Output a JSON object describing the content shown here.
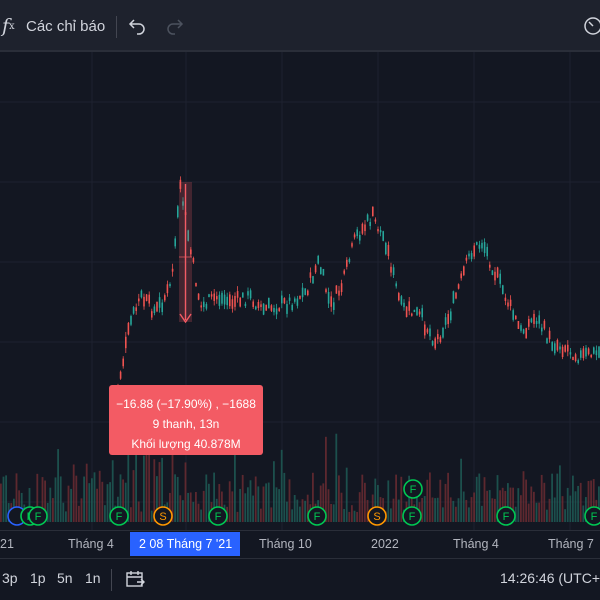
{
  "toolbar": {
    "fx_symbol": "f",
    "fx_sub": "x",
    "indicators_label": "Các chỉ báo",
    "undo_icon": "undo-icon",
    "redo_icon": "redo-icon",
    "snapshot_icon": "camera-icon"
  },
  "measure_tooltip": {
    "line1": "−16.88 (−17.90%) , −1688",
    "line2": "9 thanh, 13n",
    "line3": "Khối lượng 40.878M"
  },
  "x_axis": {
    "ticks": [
      "21",
      "Tháng 4",
      "Tháng 10",
      "2022",
      "Tháng 4",
      "Tháng 7"
    ],
    "cursor_label": "2  08 Tháng 7 '21"
  },
  "bottom_bar": {
    "ranges": [
      "3p",
      "1p",
      "5n",
      "1n"
    ],
    "date_range_icon": "calendar-range-icon",
    "clock": "14:26:46 (UTC+"
  },
  "events": {
    "row1": [
      "F",
      "F",
      "F",
      "S",
      "F",
      "F",
      "S",
      "F",
      "F",
      "F"
    ],
    "row2": [
      "F"
    ]
  },
  "colors": {
    "up": "#26a69a",
    "down": "#ef5350",
    "tooltip": "#f35b64",
    "accent": "#2962ff",
    "dividend": "#ff9800",
    "earnings": "#00c853",
    "split": "#2962ff"
  }
}
